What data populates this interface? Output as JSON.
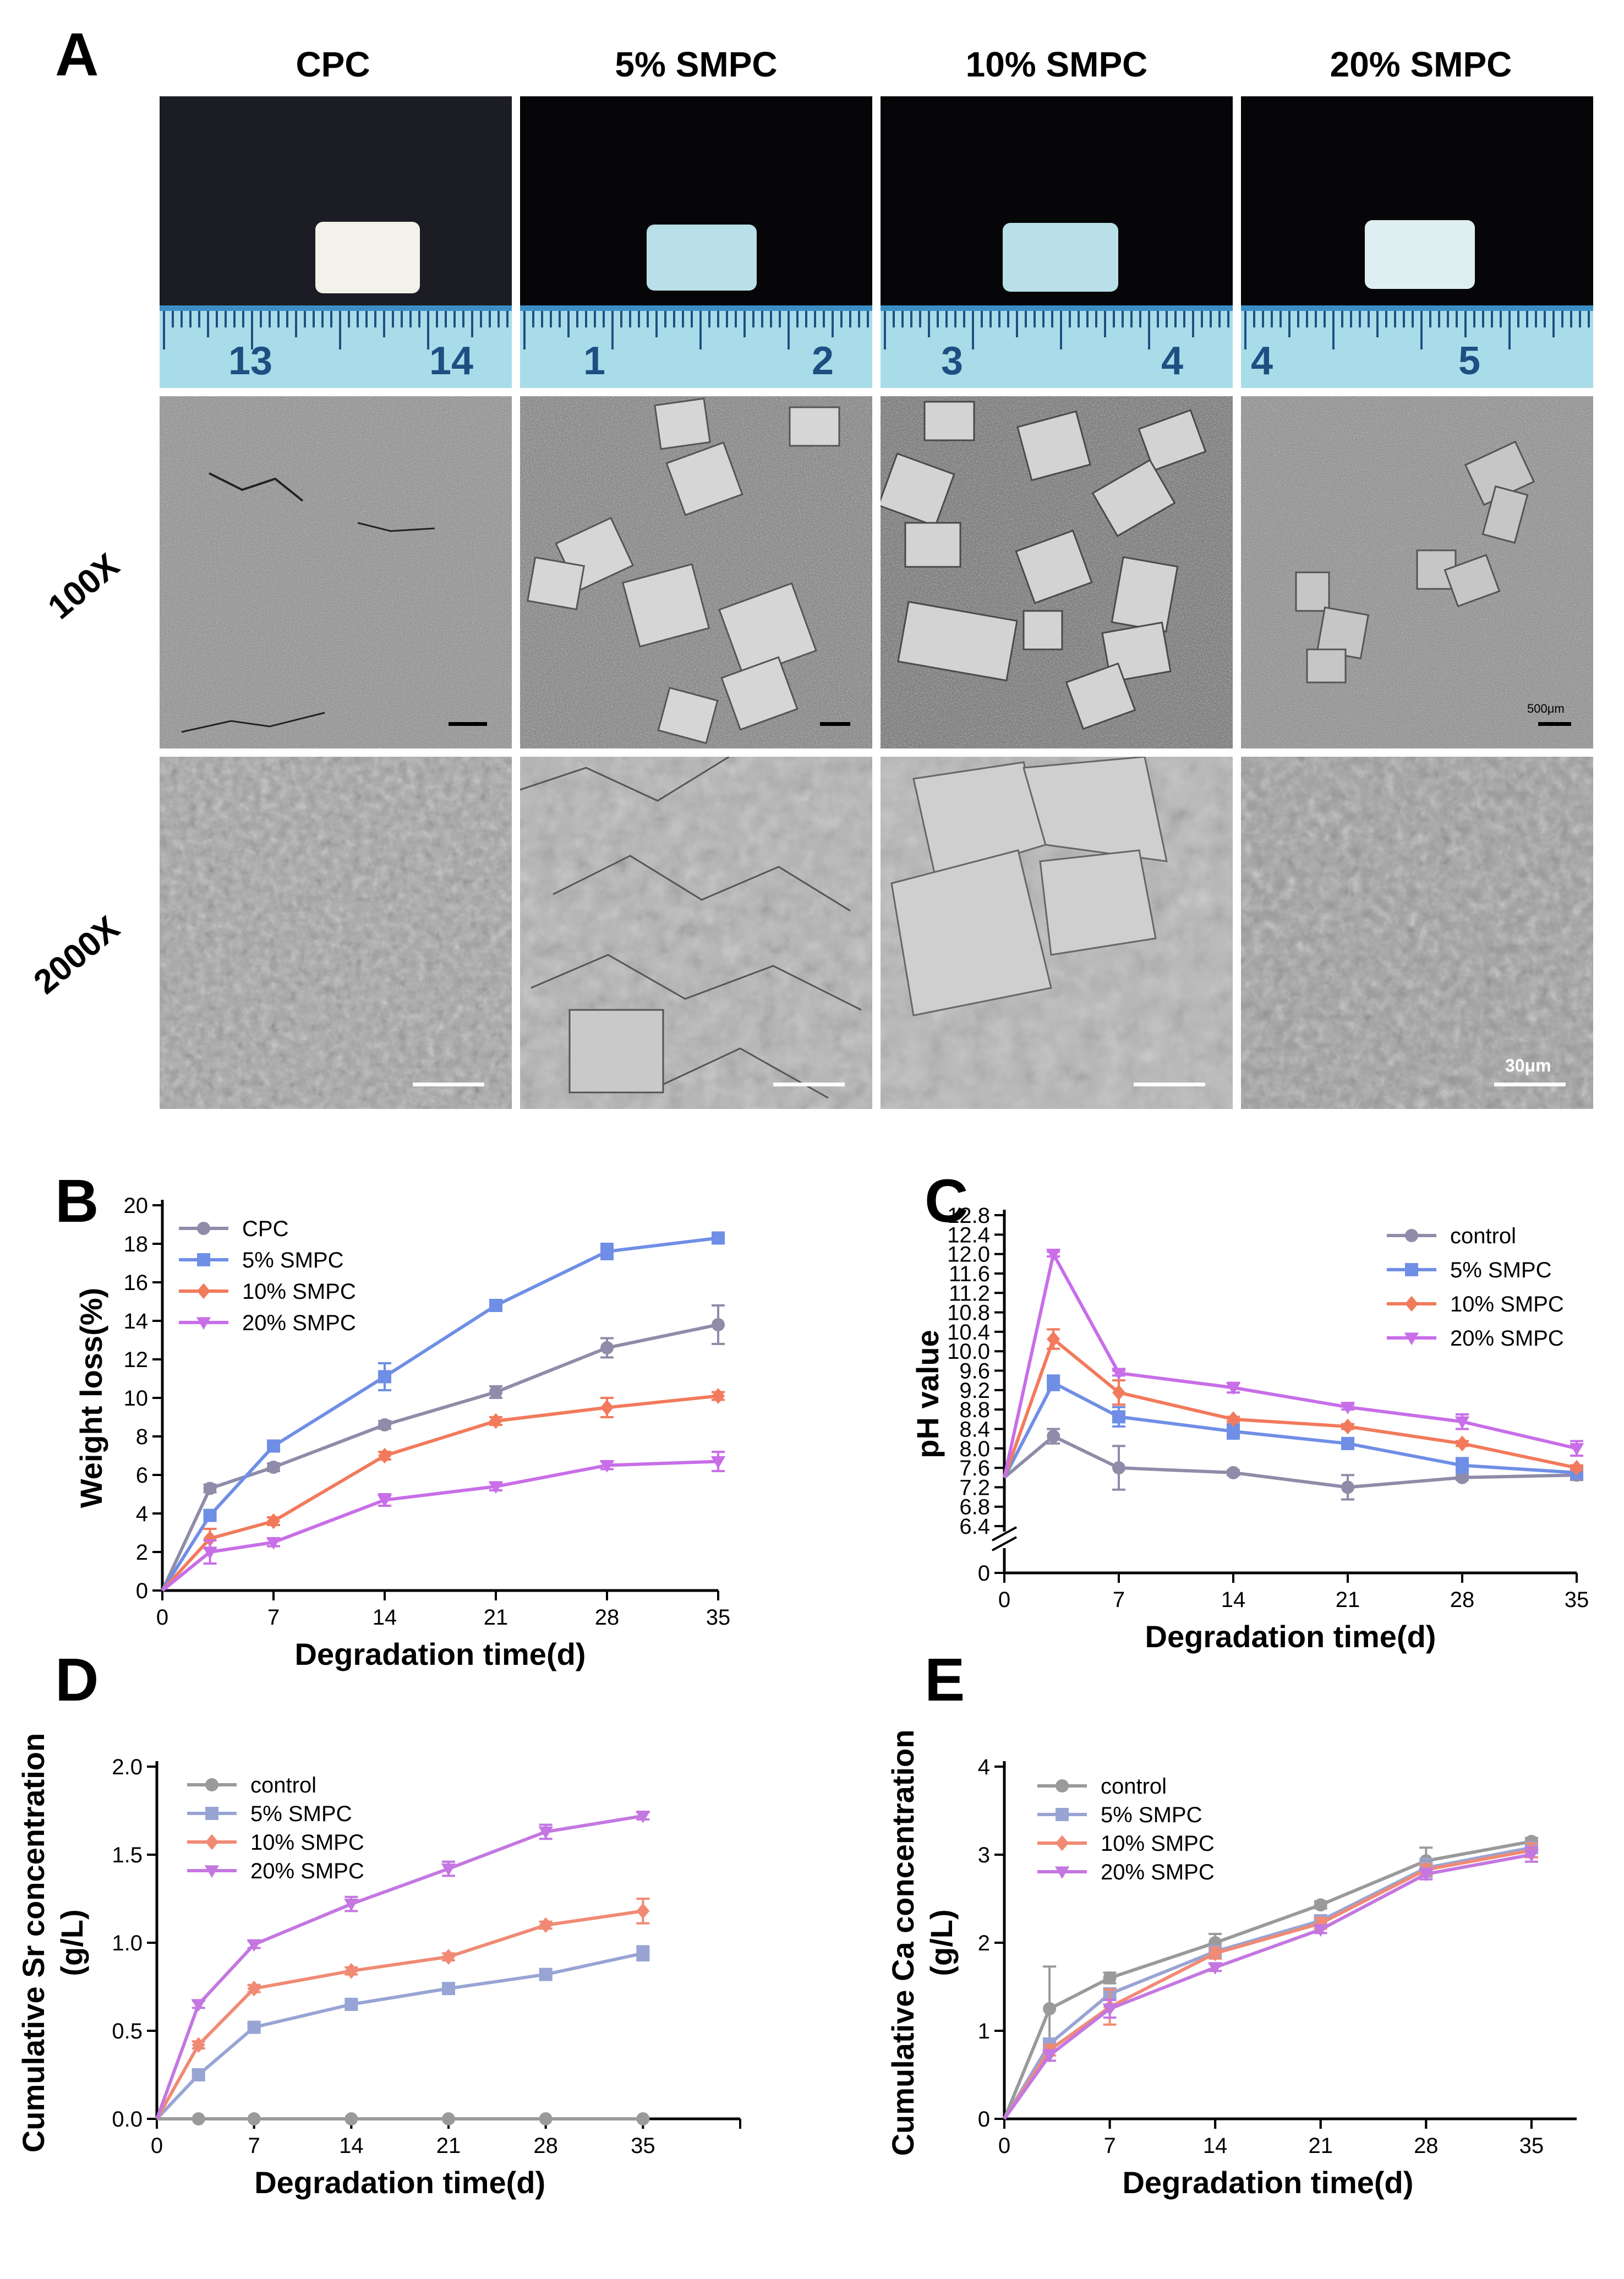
{
  "panelA": {
    "letter": "A",
    "columns": [
      "CPC",
      "5% SMPC",
      "10% SMPC",
      "20% SMPC"
    ],
    "rows": [
      "100X",
      "2000X"
    ],
    "ruler_labels": [
      [
        "13",
        "14"
      ],
      [
        "1",
        "2"
      ],
      [
        "3",
        "4"
      ],
      [
        "4",
        "5"
      ]
    ],
    "scale_bar_labels": [
      "500μm",
      "30μm"
    ]
  },
  "chart_data": [
    {
      "id": "B",
      "type": "line",
      "letter": "B",
      "xlabel": "Degradation time(d)",
      "ylabel": "Weight loss(%)",
      "x": [
        0,
        3,
        7,
        14,
        21,
        28,
        35
      ],
      "xticks": [
        0,
        7,
        14,
        21,
        28,
        35
      ],
      "xlim": [
        0,
        35
      ],
      "ylim": [
        0,
        20
      ],
      "yticks": [
        0,
        2,
        4,
        6,
        8,
        10,
        12,
        14,
        16,
        18,
        20
      ],
      "legend": "top-left",
      "series": [
        {
          "name": "CPC",
          "color": "#8e8ca8",
          "marker": "circle",
          "values": [
            0,
            5.3,
            6.4,
            8.6,
            10.3,
            12.6,
            13.8
          ],
          "err": [
            0,
            0.2,
            0.2,
            0.2,
            0.3,
            0.5,
            1.0
          ]
        },
        {
          "name": "5% SMPC",
          "color": "#6f8ee6",
          "marker": "square",
          "values": [
            0,
            3.9,
            7.5,
            11.1,
            14.8,
            17.6,
            18.3
          ],
          "err": [
            0,
            0.2,
            0.2,
            0.7,
            0.2,
            0.4,
            0.2
          ]
        },
        {
          "name": "10% SMPC",
          "color": "#f27a5c",
          "marker": "diamond",
          "values": [
            0,
            2.7,
            3.6,
            7.0,
            8.8,
            9.5,
            10.1
          ],
          "err": [
            0,
            0.5,
            0.2,
            0.2,
            0.2,
            0.5,
            0.2
          ]
        },
        {
          "name": "20% SMPC",
          "color": "#c86ee8",
          "marker": "tri-down",
          "values": [
            0,
            2.0,
            2.5,
            4.7,
            5.4,
            6.5,
            6.7
          ],
          "err": [
            0,
            0.6,
            0.2,
            0.3,
            0.2,
            0.2,
            0.5
          ]
        }
      ]
    },
    {
      "id": "C",
      "type": "line",
      "letter": "C",
      "xlabel": "Degradation time(d)",
      "ylabel": "pH value",
      "x": [
        0,
        3,
        7,
        14,
        21,
        28,
        35
      ],
      "xticks": [
        0,
        7,
        14,
        21,
        28,
        35
      ],
      "xlim": [
        0,
        35
      ],
      "ylim": [
        6.4,
        12.8
      ],
      "yticks": [
        6.4,
        6.8,
        7.2,
        7.6,
        8.0,
        8.4,
        8.8,
        9.2,
        9.6,
        10.0,
        10.4,
        10.8,
        11.2,
        11.6,
        12.0,
        12.4,
        12.8
      ],
      "y_axis_break": true,
      "y_break_tick": 0,
      "legend": "top-right",
      "series": [
        {
          "name": "control",
          "color": "#8e8ca8",
          "marker": "circle",
          "values": [
            7.4,
            8.25,
            7.6,
            7.5,
            7.2,
            7.4,
            7.45
          ],
          "err": [
            0,
            0.15,
            0.45,
            0.05,
            0.25,
            0.05,
            0.1
          ]
        },
        {
          "name": "5% SMPC",
          "color": "#6f8ee6",
          "marker": "square",
          "values": [
            7.4,
            9.35,
            8.65,
            8.35,
            8.1,
            7.65,
            7.5
          ],
          "err": [
            0,
            0.15,
            0.2,
            0.15,
            0.05,
            0.15,
            0.1
          ]
        },
        {
          "name": "10% SMPC",
          "color": "#f27a5c",
          "marker": "diamond",
          "values": [
            7.4,
            10.25,
            9.15,
            8.6,
            8.45,
            8.1,
            7.6
          ],
          "err": [
            0,
            0.2,
            0.25,
            0.05,
            0.05,
            0.05,
            0.05
          ]
        },
        {
          "name": "20% SMPC",
          "color": "#c86ee8",
          "marker": "tri-down",
          "values": [
            7.4,
            12.0,
            9.55,
            9.25,
            8.85,
            8.55,
            8.0
          ],
          "err": [
            0,
            0.05,
            0.05,
            0.1,
            0.05,
            0.15,
            0.15
          ]
        }
      ]
    },
    {
      "id": "D",
      "type": "line",
      "letter": "D",
      "xlabel": "Degradation time(d)",
      "ylabel": [
        "Cumulative Sr concentration",
        "(g/L)"
      ],
      "x": [
        0,
        3,
        7,
        14,
        21,
        28,
        35
      ],
      "xticks": [
        0,
        7,
        14,
        21,
        28,
        35
      ],
      "xlim": [
        0,
        35
      ],
      "xmax_axis": 42,
      "ylim": [
        0,
        2.0
      ],
      "yticks": [
        0.0,
        0.5,
        1.0,
        1.5,
        2.0
      ],
      "ytick_labels": [
        "0.0",
        "0.5",
        "1.0",
        "1.5",
        "2.0"
      ],
      "legend": "top-left",
      "series": [
        {
          "name": "control",
          "color": "#9a9a9a",
          "marker": "circle",
          "values": [
            0,
            0,
            0,
            0,
            0,
            0,
            0
          ],
          "err": [
            0,
            0,
            0,
            0,
            0,
            0,
            0
          ]
        },
        {
          "name": "5% SMPC",
          "color": "#98a4d4",
          "marker": "square",
          "values": [
            0,
            0.25,
            0.52,
            0.65,
            0.74,
            0.82,
            0.94
          ],
          "err": [
            0,
            0.02,
            0.02,
            0.02,
            0.02,
            0.02,
            0.04
          ]
        },
        {
          "name": "10% SMPC",
          "color": "#f08a74",
          "marker": "diamond",
          "values": [
            0,
            0.42,
            0.74,
            0.84,
            0.92,
            1.1,
            1.18
          ],
          "err": [
            0,
            0.02,
            0.02,
            0.02,
            0.02,
            0.02,
            0.07
          ]
        },
        {
          "name": "20% SMPC",
          "color": "#c477e0",
          "marker": "tri-down",
          "values": [
            0,
            0.65,
            0.99,
            1.22,
            1.42,
            1.63,
            1.72
          ],
          "err": [
            0,
            0.02,
            0.02,
            0.04,
            0.04,
            0.04,
            0.02
          ]
        }
      ]
    },
    {
      "id": "E",
      "type": "line",
      "letter": "E",
      "xlabel": "Degradation time(d)",
      "ylabel": [
        "Cumulative Ca concentration",
        "(g/L)"
      ],
      "x": [
        0,
        3,
        7,
        14,
        21,
        28,
        35
      ],
      "xticks": [
        0,
        7,
        14,
        21,
        28,
        35
      ],
      "xlim": [
        0,
        35
      ],
      "xmax_axis": 38,
      "ylim": [
        0,
        4
      ],
      "yticks": [
        0,
        1,
        2,
        3,
        4
      ],
      "ytick_labels": [
        "0",
        "1",
        "2",
        "3",
        "4"
      ],
      "legend": "top-left",
      "series": [
        {
          "name": "control",
          "color": "#9a9a9a",
          "marker": "circle",
          "values": [
            0,
            1.25,
            1.6,
            2.0,
            2.43,
            2.93,
            3.15
          ],
          "err": [
            0,
            0.48,
            0.06,
            0.1,
            0.04,
            0.15,
            0.04
          ]
        },
        {
          "name": "5% SMPC",
          "color": "#98a4d4",
          "marker": "square",
          "values": [
            0,
            0.85,
            1.42,
            1.9,
            2.25,
            2.85,
            3.08
          ],
          "err": [
            0,
            0.06,
            0.06,
            0.06,
            0.06,
            0.1,
            0.06
          ]
        },
        {
          "name": "10% SMPC",
          "color": "#f08a74",
          "marker": "diamond",
          "values": [
            0,
            0.78,
            1.27,
            1.88,
            2.22,
            2.83,
            3.05
          ],
          "err": [
            0,
            0.06,
            0.2,
            0.06,
            0.06,
            0.06,
            0.08
          ]
        },
        {
          "name": "20% SMPC",
          "color": "#c477e0",
          "marker": "tri-down",
          "values": [
            0,
            0.72,
            1.25,
            1.72,
            2.15,
            2.78,
            3.0
          ],
          "err": [
            0,
            0.06,
            0.1,
            0.04,
            0.04,
            0.06,
            0.08
          ]
        }
      ]
    }
  ]
}
